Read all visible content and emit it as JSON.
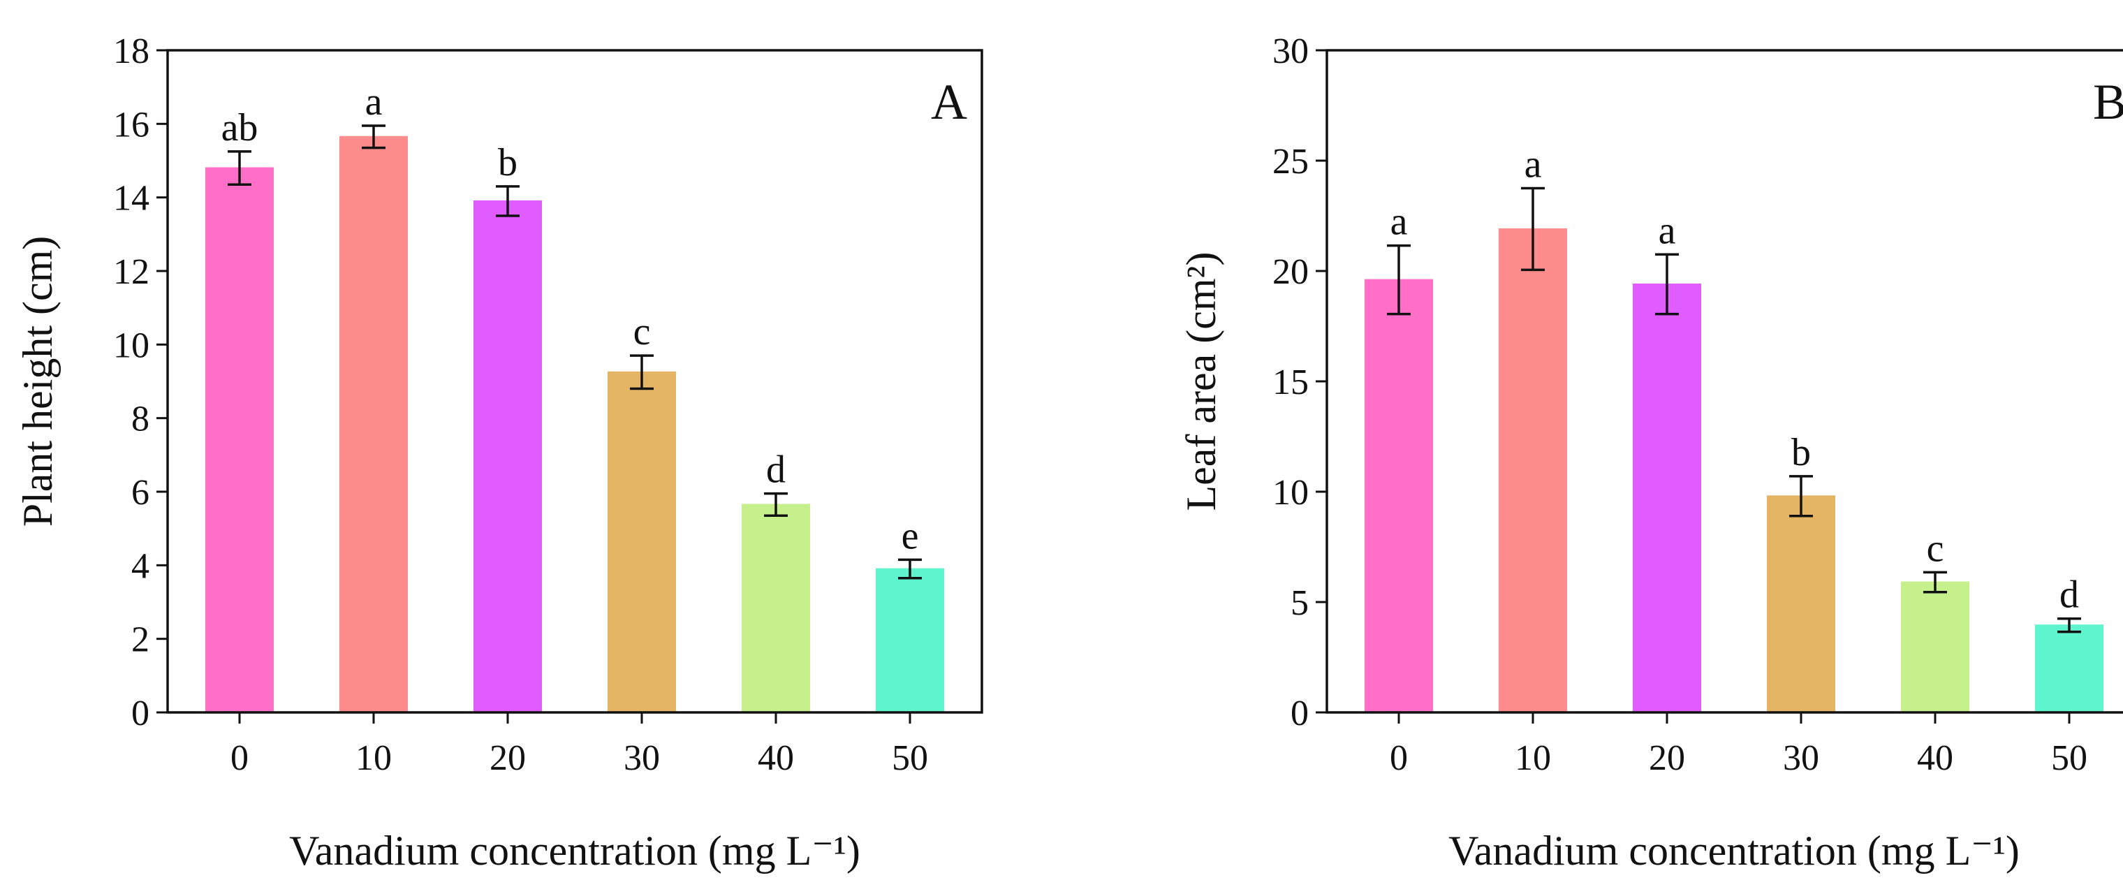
{
  "chart_data": [
    {
      "type": "bar",
      "panel_label": "A",
      "categories": [
        "0",
        "10",
        "20",
        "30",
        "40",
        "50"
      ],
      "values": [
        14.8,
        15.65,
        13.9,
        9.25,
        5.65,
        3.9
      ],
      "errors": [
        0.45,
        0.3,
        0.4,
        0.45,
        0.3,
        0.25
      ],
      "significance": [
        "ab",
        "a",
        "b",
        "c",
        "d",
        "e"
      ],
      "colors": [
        "#ff6fc8",
        "#ff8c8c",
        "#e05cff",
        "#e4b565",
        "#c6f08c",
        "#5ff5cf"
      ],
      "ylabel": "Plant height (cm)",
      "xlabel": "Vanadium concentration (mg L⁻¹)",
      "ylim": [
        0,
        18
      ],
      "yticks": [
        "0",
        "2",
        "4",
        "6",
        "8",
        "10",
        "12",
        "14",
        "16",
        "18"
      ]
    },
    {
      "type": "bar",
      "panel_label": "B",
      "categories": [
        "0",
        "10",
        "20",
        "30",
        "40",
        "50"
      ],
      "values": [
        19.6,
        21.9,
        19.4,
        9.8,
        5.9,
        3.95
      ],
      "errors": [
        1.55,
        1.85,
        1.35,
        0.9,
        0.45,
        0.3
      ],
      "significance": [
        "a",
        "a",
        "a",
        "b",
        "c",
        "d"
      ],
      "colors": [
        "#ff6fc8",
        "#ff8c8c",
        "#e05cff",
        "#e4b565",
        "#c6f08c",
        "#5ff5cf"
      ],
      "ylabel": "Leaf area (cm²)",
      "xlabel": "Vanadium concentration (mg L⁻¹)",
      "ylim": [
        0,
        30
      ],
      "yticks": [
        "0",
        "5",
        "10",
        "15",
        "20",
        "25",
        "30"
      ]
    }
  ]
}
